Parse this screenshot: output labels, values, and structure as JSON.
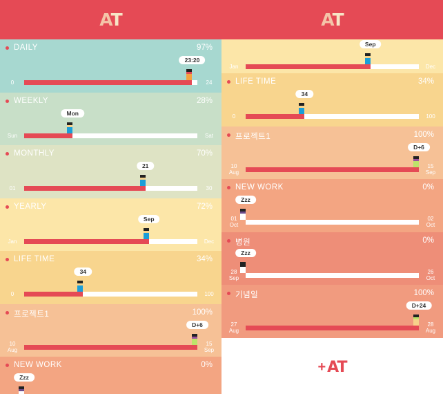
{
  "logo_left": {
    "a": "A",
    "t": "T"
  },
  "logo_right": {
    "a": "A",
    "t": "T"
  },
  "colors": {
    "accent": "#e54a55",
    "header": "#e54a55",
    "track": "#ffffff",
    "fill": "#e54a55"
  },
  "screen_left": {
    "rows": [
      {
        "name": "DAILY",
        "percent": "97%",
        "progress": 0.97,
        "start": "0",
        "end": "24",
        "marker": "23:20",
        "color": "#a7d8d0",
        "figure_body": "#f5a340",
        "figure_face": "#e54a55"
      },
      {
        "name": "WEEKLY",
        "percent": "28%",
        "progress": 0.28,
        "start": "Sun",
        "end": "Sat",
        "marker": "Mon",
        "color": "#c8dfc8",
        "figure_body": "#1b9ed8",
        "figure_face": "#f7d28a"
      },
      {
        "name": "MONTHLY",
        "percent": "70%",
        "progress": 0.7,
        "start": "01",
        "end": "30",
        "marker": "21",
        "color": "#dee3c4",
        "figure_body": "#1b9ed8",
        "figure_face": "#f7d28a"
      },
      {
        "name": "YEARLY",
        "percent": "72%",
        "progress": 0.72,
        "start": "Jan",
        "end": "Dec",
        "marker": "Sep",
        "color": "#fce6a8",
        "figure_body": "#1b9ed8",
        "figure_face": "#f7d28a"
      },
      {
        "name": "LIFE TIME",
        "percent": "34%",
        "progress": 0.34,
        "start": "0",
        "end": "100",
        "marker": "34",
        "color": "#f8d58e",
        "figure_body": "#1b9ed8",
        "figure_face": "#f7d28a"
      },
      {
        "name": "프로젝트1",
        "percent": "100%",
        "progress": 1.0,
        "start": "10\nAug",
        "end": "15\nSep",
        "marker": "D+6",
        "color": "#f6c196",
        "figure_body": "#bde36a",
        "figure_face": "#9b4fa0"
      },
      {
        "name": "NEW WORK",
        "percent": "0%",
        "progress": 0.0,
        "start": "",
        "end": "",
        "marker": "Zzz",
        "color": "#f3a582",
        "figure_body": "#ffffff",
        "figure_face": "#6b4a8a"
      }
    ]
  },
  "screen_right": {
    "rows": [
      {
        "name": "",
        "percent": "",
        "progress": 0.72,
        "start": "Jan",
        "end": "Dec",
        "marker": "Sep",
        "color": "#fce6a8",
        "figure_body": "#1b9ed8",
        "figure_face": "#f7d28a"
      },
      {
        "name": "LIFE TIME",
        "percent": "34%",
        "progress": 0.34,
        "start": "0",
        "end": "100",
        "marker": "34",
        "color": "#f8d58e",
        "figure_body": "#1b9ed8",
        "figure_face": "#f7d28a"
      },
      {
        "name": "프로젝트1",
        "percent": "100%",
        "progress": 1.0,
        "start": "10\nAug",
        "end": "15\nSep",
        "marker": "D+6",
        "color": "#f6c196",
        "figure_body": "#bde36a",
        "figure_face": "#9b4fa0"
      },
      {
        "name": "NEW WORK",
        "percent": "0%",
        "progress": 0.0,
        "start": "01\nOct",
        "end": "02\nOct",
        "marker": "Zzz",
        "color": "#f3a582",
        "figure_body": "#ffffff",
        "figure_face": "#6b4a8a"
      },
      {
        "name": "병원",
        "percent": "0%",
        "progress": 0.0,
        "start": "28\nSep",
        "end": "26\nOct",
        "marker": "Zzz",
        "color": "#ee8e78",
        "figure_body": "#ffffff",
        "figure_face": "#222222"
      },
      {
        "name": "기념일",
        "percent": "100%",
        "progress": 1.0,
        "start": "27\nAug",
        "end": "28\nAug",
        "marker": "D+24",
        "color": "#f19b7f",
        "figure_body": "#f7d28a",
        "figure_face": "#bde36a"
      }
    ],
    "add_button": {
      "plus": "+",
      "a": "A",
      "t": "T"
    }
  }
}
